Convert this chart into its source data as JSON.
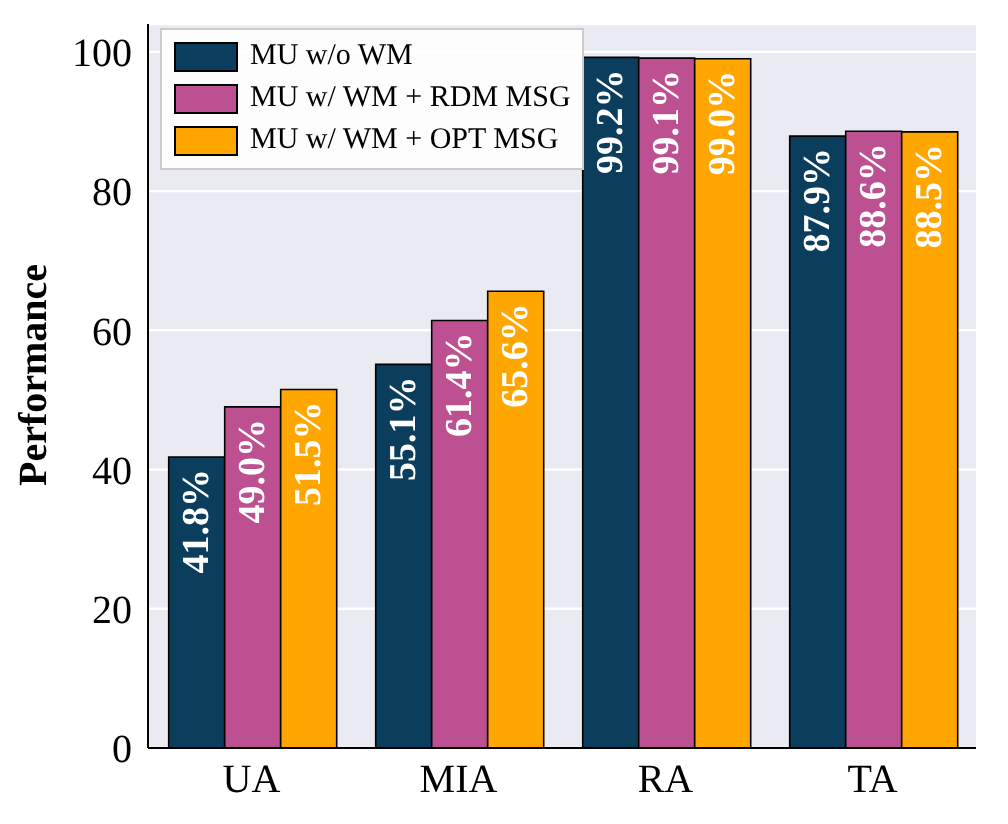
{
  "chart_data": {
    "type": "bar",
    "ylabel": "Performance",
    "categories": [
      "UA",
      "MIA",
      "RA",
      "TA"
    ],
    "series": [
      {
        "name": "MU w/o WM",
        "color": "#0b3d5c",
        "values": [
          41.8,
          55.1,
          99.2,
          87.9
        ],
        "value_labels": [
          "41.8%",
          "55.1%",
          "99.2%",
          "87.9%"
        ]
      },
      {
        "name": "MU w/ WM + RDM MSG",
        "color": "#bc5090",
        "values": [
          49.0,
          61.4,
          99.1,
          88.6
        ],
        "value_labels": [
          "49.0%",
          "61.4%",
          "99.1%",
          "88.6%"
        ]
      },
      {
        "name": "MU w/ WM + OPT MSG",
        "color": "#ffa600",
        "values": [
          51.5,
          65.6,
          99.0,
          88.5
        ],
        "value_labels": [
          "51.5%",
          "65.6%",
          "99.0%",
          "88.5%"
        ]
      }
    ],
    "ylim": [
      0,
      104
    ],
    "yticks": [
      0,
      20,
      40,
      60,
      80,
      100
    ],
    "grid": "y",
    "legend": "top left"
  }
}
